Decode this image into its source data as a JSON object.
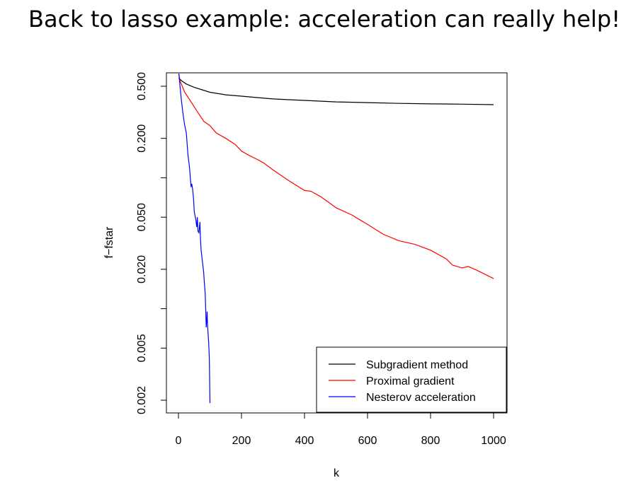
{
  "slide": {
    "title": "Back to lasso example: acceleration can really help!"
  },
  "chart_data": {
    "type": "line",
    "xlabel": "k",
    "ylabel": "f−fstar",
    "xlim": [
      0,
      1000
    ],
    "ylim": [
      0.002,
      0.5
    ],
    "y_scale": "log",
    "x_ticks": [
      0,
      200,
      400,
      600,
      800,
      1000
    ],
    "x_tick_labels": [
      "0",
      "200",
      "400",
      "600",
      "800",
      "1000"
    ],
    "y_ticks": [
      0.002,
      0.005,
      0.01,
      0.02,
      0.05,
      0.1,
      0.2,
      0.5
    ],
    "y_tick_labels": [
      "0.002",
      "0.005",
      "",
      "0.020",
      "0.050",
      "",
      "0.200",
      "0.500"
    ],
    "grid": false,
    "legend_position": "bottom-right",
    "series": [
      {
        "name": "Subgradient method",
        "color": "#000000",
        "x": [
          1,
          10,
          25,
          50,
          75,
          100,
          150,
          200,
          250,
          300,
          350,
          400,
          500,
          600,
          700,
          800,
          900,
          1000
        ],
        "y": [
          0.58,
          0.55,
          0.52,
          0.49,
          0.47,
          0.45,
          0.43,
          0.42,
          0.41,
          0.4,
          0.395,
          0.39,
          0.38,
          0.375,
          0.37,
          0.367,
          0.365,
          0.362
        ]
      },
      {
        "name": "Proximal gradient",
        "color": "#ff0000",
        "x": [
          1,
          5,
          20,
          40,
          60,
          80,
          90,
          100,
          120,
          150,
          180,
          200,
          220,
          250,
          270,
          300,
          350,
          400,
          420,
          450,
          480,
          500,
          550,
          600,
          650,
          700,
          750,
          800,
          850,
          870,
          900,
          920,
          950,
          1000
        ],
        "y": [
          0.62,
          0.55,
          0.45,
          0.38,
          0.32,
          0.27,
          0.26,
          0.25,
          0.22,
          0.2,
          0.18,
          0.16,
          0.15,
          0.138,
          0.13,
          0.115,
          0.095,
          0.08,
          0.079,
          0.072,
          0.064,
          0.059,
          0.052,
          0.044,
          0.037,
          0.033,
          0.031,
          0.028,
          0.024,
          0.0215,
          0.0205,
          0.021,
          0.0195,
          0.017
        ]
      },
      {
        "name": "Nesterov acceleration",
        "color": "#0000ff",
        "x": [
          1,
          5,
          10,
          15,
          20,
          25,
          30,
          35,
          40,
          42,
          45,
          48,
          50,
          55,
          58,
          60,
          62,
          65,
          68,
          70,
          72,
          75,
          78,
          80,
          82,
          85,
          87,
          88,
          90,
          91,
          92,
          94,
          96,
          98,
          100
        ],
        "y": [
          0.65,
          0.5,
          0.38,
          0.3,
          0.25,
          0.22,
          0.15,
          0.12,
          0.085,
          0.09,
          0.082,
          0.068,
          0.055,
          0.048,
          0.042,
          0.05,
          0.039,
          0.038,
          0.046,
          0.034,
          0.028,
          0.024,
          0.021,
          0.019,
          0.016,
          0.013,
          0.009,
          0.0072,
          0.0085,
          0.0095,
          0.0078,
          0.0065,
          0.0055,
          0.0042,
          0.0019
        ]
      }
    ]
  }
}
